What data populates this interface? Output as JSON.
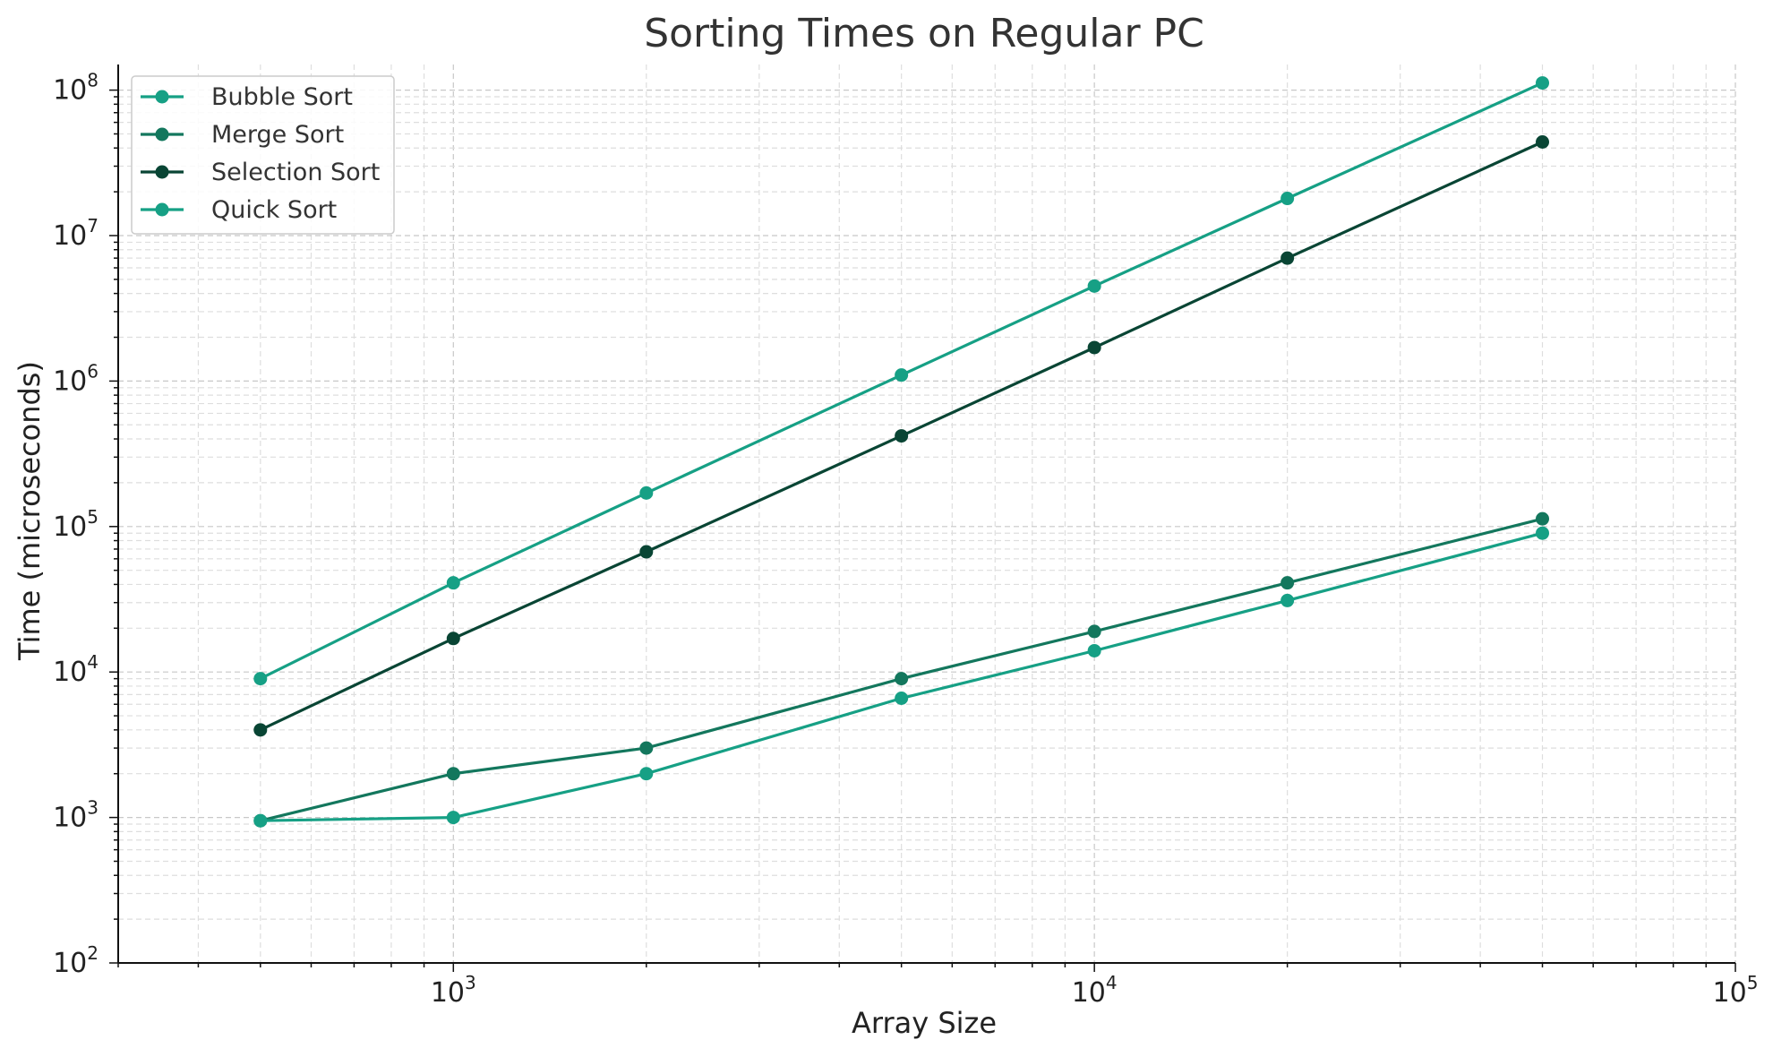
{
  "chart_data": {
    "type": "line",
    "title": "Sorting Times on Regular PC",
    "xlabel": "Array Size",
    "ylabel": "Time (microseconds)",
    "xscale": "log",
    "yscale": "log",
    "xlim": [
      300,
      100000
    ],
    "ylim": [
      100,
      150000000
    ],
    "grid": true,
    "legend_position": "top-left",
    "x_tick_labels": [
      {
        "base": "10",
        "exp": "3",
        "value": 1000
      },
      {
        "base": "10",
        "exp": "4",
        "value": 10000
      },
      {
        "base": "10",
        "exp": "5",
        "value": 100000
      }
    ],
    "y_tick_labels": [
      {
        "base": "10",
        "exp": "2",
        "value": 100
      },
      {
        "base": "10",
        "exp": "3",
        "value": 1000
      },
      {
        "base": "10",
        "exp": "4",
        "value": 10000
      },
      {
        "base": "10",
        "exp": "5",
        "value": 100000
      },
      {
        "base": "10",
        "exp": "6",
        "value": 1000000
      },
      {
        "base": "10",
        "exp": "7",
        "value": 10000000
      },
      {
        "base": "10",
        "exp": "8",
        "value": 100000000
      }
    ],
    "x": [
      500,
      1000,
      2000,
      5000,
      10000,
      20000,
      50000
    ],
    "series": [
      {
        "name": "Bubble Sort",
        "color": "#16a085",
        "values": [
          9000,
          41000,
          170000,
          1100000,
          4500000,
          18000000,
          112000000
        ]
      },
      {
        "name": "Merge Sort",
        "color": "#13775d",
        "values": [
          950,
          2000,
          3000,
          9000,
          19000,
          41000,
          113000
        ]
      },
      {
        "name": "Selection Sort",
        "color": "#094534",
        "values": [
          4000,
          17000,
          67000,
          420000,
          1700000,
          7000000,
          44000000
        ]
      },
      {
        "name": "Quick Sort",
        "color": "#16a085",
        "values": [
          950,
          1000,
          2000,
          6600,
          14000,
          31000,
          90000
        ]
      }
    ]
  }
}
